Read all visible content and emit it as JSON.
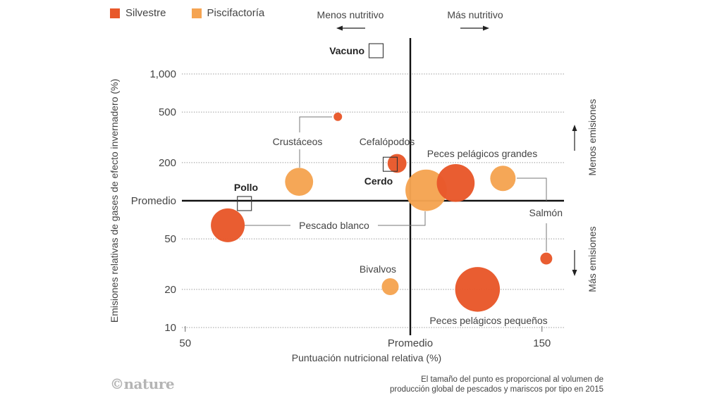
{
  "chart_data": {
    "type": "scatter",
    "subtype": "bubble",
    "xlabel": "Puntuación nutricional relativa (%)",
    "ylabel": "Emisiones relativas de gases de efecto invernadero (%)",
    "x_scale": "log",
    "y_scale": "log",
    "xlim": [
      50,
      158
    ],
    "ylim": [
      9,
      2000
    ],
    "x_ticks": [
      {
        "value": 50,
        "label": "50"
      },
      {
        "value": 100,
        "label": "Promedio"
      },
      {
        "value": 150,
        "label": "150"
      }
    ],
    "y_ticks": [
      {
        "value": 1000,
        "label": "1,000"
      },
      {
        "value": 500,
        "label": "500"
      },
      {
        "value": 200,
        "label": "200"
      },
      {
        "value": 100,
        "label": "Promedio"
      },
      {
        "value": 50,
        "label": "50"
      },
      {
        "value": 20,
        "label": "20"
      },
      {
        "value": 10,
        "label": "10"
      }
    ],
    "grid": "dotted horizontal",
    "reference_lines": {
      "x": 100,
      "y": 100
    },
    "legend": {
      "placement": "top-left",
      "entries": [
        {
          "name": "Silvestre",
          "color": "#e8582a"
        },
        {
          "name": "Piscifactoría",
          "color": "#f5a452"
        }
      ]
    },
    "series": [
      {
        "name": "Silvestre",
        "color": "#e8582a",
        "points": [
          {
            "group": "Crustáceos",
            "x": 80,
            "y": 460,
            "size": 1
          },
          {
            "group": "Cefalópodos",
            "x": 96,
            "y": 197,
            "size": 5
          },
          {
            "group": "Peces pelágicos grandes",
            "x": 115,
            "y": 138,
            "size": 20
          },
          {
            "group": "Salmón",
            "x": 152,
            "y": 35,
            "size": 2
          },
          {
            "group": "Pescado blanco",
            "x": 57,
            "y": 64,
            "size": 16
          },
          {
            "group": "Peces pelágicos pequeños",
            "x": 123,
            "y": 20,
            "size": 28
          }
        ]
      },
      {
        "name": "Piscifactoría",
        "color": "#f5a452",
        "points": [
          {
            "group": "Crustáceos",
            "x": 71,
            "y": 141,
            "size": 11
          },
          {
            "group": "Pescado blanco",
            "x": 105,
            "y": 121,
            "size": 24
          },
          {
            "group": "Salmón",
            "x": 133,
            "y": 150,
            "size": 9
          },
          {
            "group": "Bivalvos",
            "x": 94,
            "y": 21,
            "size": 4
          }
        ]
      }
    ],
    "reference_foods": [
      {
        "name": "Vacuno",
        "x": 90,
        "y": 1525
      },
      {
        "name": "Cerdo",
        "x": 94,
        "y": 194
      },
      {
        "name": "Pollo",
        "x": 60,
        "y": 95
      }
    ],
    "annotations": [
      {
        "text": "Menos nutritivo",
        "direction": "left"
      },
      {
        "text": "Más nutritivo",
        "direction": "right"
      },
      {
        "text": "Menos emisiones",
        "direction": "up"
      },
      {
        "text": "Más emisiones",
        "direction": "down"
      }
    ],
    "labels": {
      "crustaceos": "Crustáceos",
      "cefalopodos": "Cefalópodos",
      "ppg": "Peces pelágicos grandes",
      "pescado_blanco": "Pescado blanco",
      "salmon": "Salmón",
      "bivalvos": "Bivalvos",
      "ppp": "Peces pelágicos pequeños",
      "vacuno": "Vacuno",
      "cerdo": "Cerdo",
      "pollo": "Pollo"
    }
  },
  "legend": {
    "silvestre": "Silvestre",
    "piscifactoria": "Piscifactoría",
    "silvestre_color": "#e8582a",
    "piscifactoria_color": "#f5a452"
  },
  "annotations": {
    "menos_nutritivo": "Menos nutritivo",
    "mas_nutritivo": "Más nutritivo",
    "menos_emisiones": "Menos emisiones",
    "mas_emisiones": "Más emisiones"
  },
  "footer": {
    "logo": "©nature",
    "note_line1": "El tamaño del punto es proporcional al volumen de",
    "note_line2": "producción global de pescados y mariscos por tipo en 2015"
  }
}
